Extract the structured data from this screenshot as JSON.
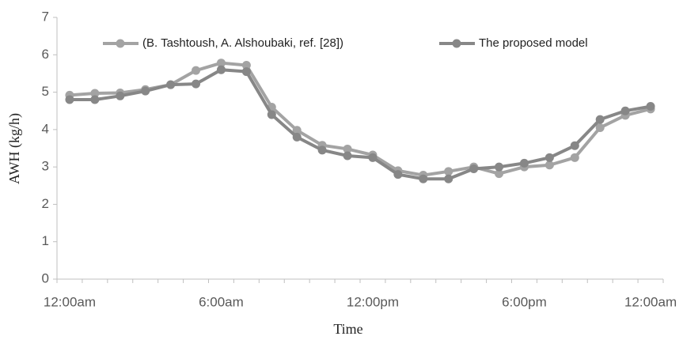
{
  "chart_data": {
    "type": "line",
    "x_label": "Time",
    "y_label": "AWH (kg/h)",
    "categories": [
      "12:00am",
      null,
      null,
      null,
      null,
      null,
      "6:00am",
      null,
      null,
      null,
      null,
      null,
      "12:00pm",
      null,
      null,
      null,
      null,
      null,
      "6:00pm",
      null,
      null,
      null,
      null,
      "12:00am"
    ],
    "series": [
      {
        "name": "(B. Tashtoush, A. Alshoubaki, ref. [28])",
        "color": "#a3a3a3",
        "values": [
          4.92,
          4.97,
          4.98,
          5.07,
          5.2,
          5.58,
          5.78,
          5.72,
          4.6,
          3.98,
          3.58,
          3.48,
          3.32,
          2.9,
          2.78,
          2.88,
          3.0,
          2.82,
          3.0,
          3.05,
          3.25,
          4.05,
          4.38,
          4.55
        ]
      },
      {
        "name": "The proposed model",
        "color": "#878787",
        "values": [
          4.8,
          4.8,
          4.9,
          5.03,
          5.2,
          5.22,
          5.6,
          5.55,
          4.4,
          3.8,
          3.45,
          3.3,
          3.25,
          2.8,
          2.68,
          2.68,
          2.95,
          3.0,
          3.1,
          3.25,
          3.57,
          4.27,
          4.5,
          4.62
        ]
      }
    ],
    "ylim": [
      0,
      7
    ],
    "yticks": [
      0,
      1,
      2,
      3,
      4,
      5,
      6,
      7
    ],
    "grid": false,
    "legend": "top"
  }
}
